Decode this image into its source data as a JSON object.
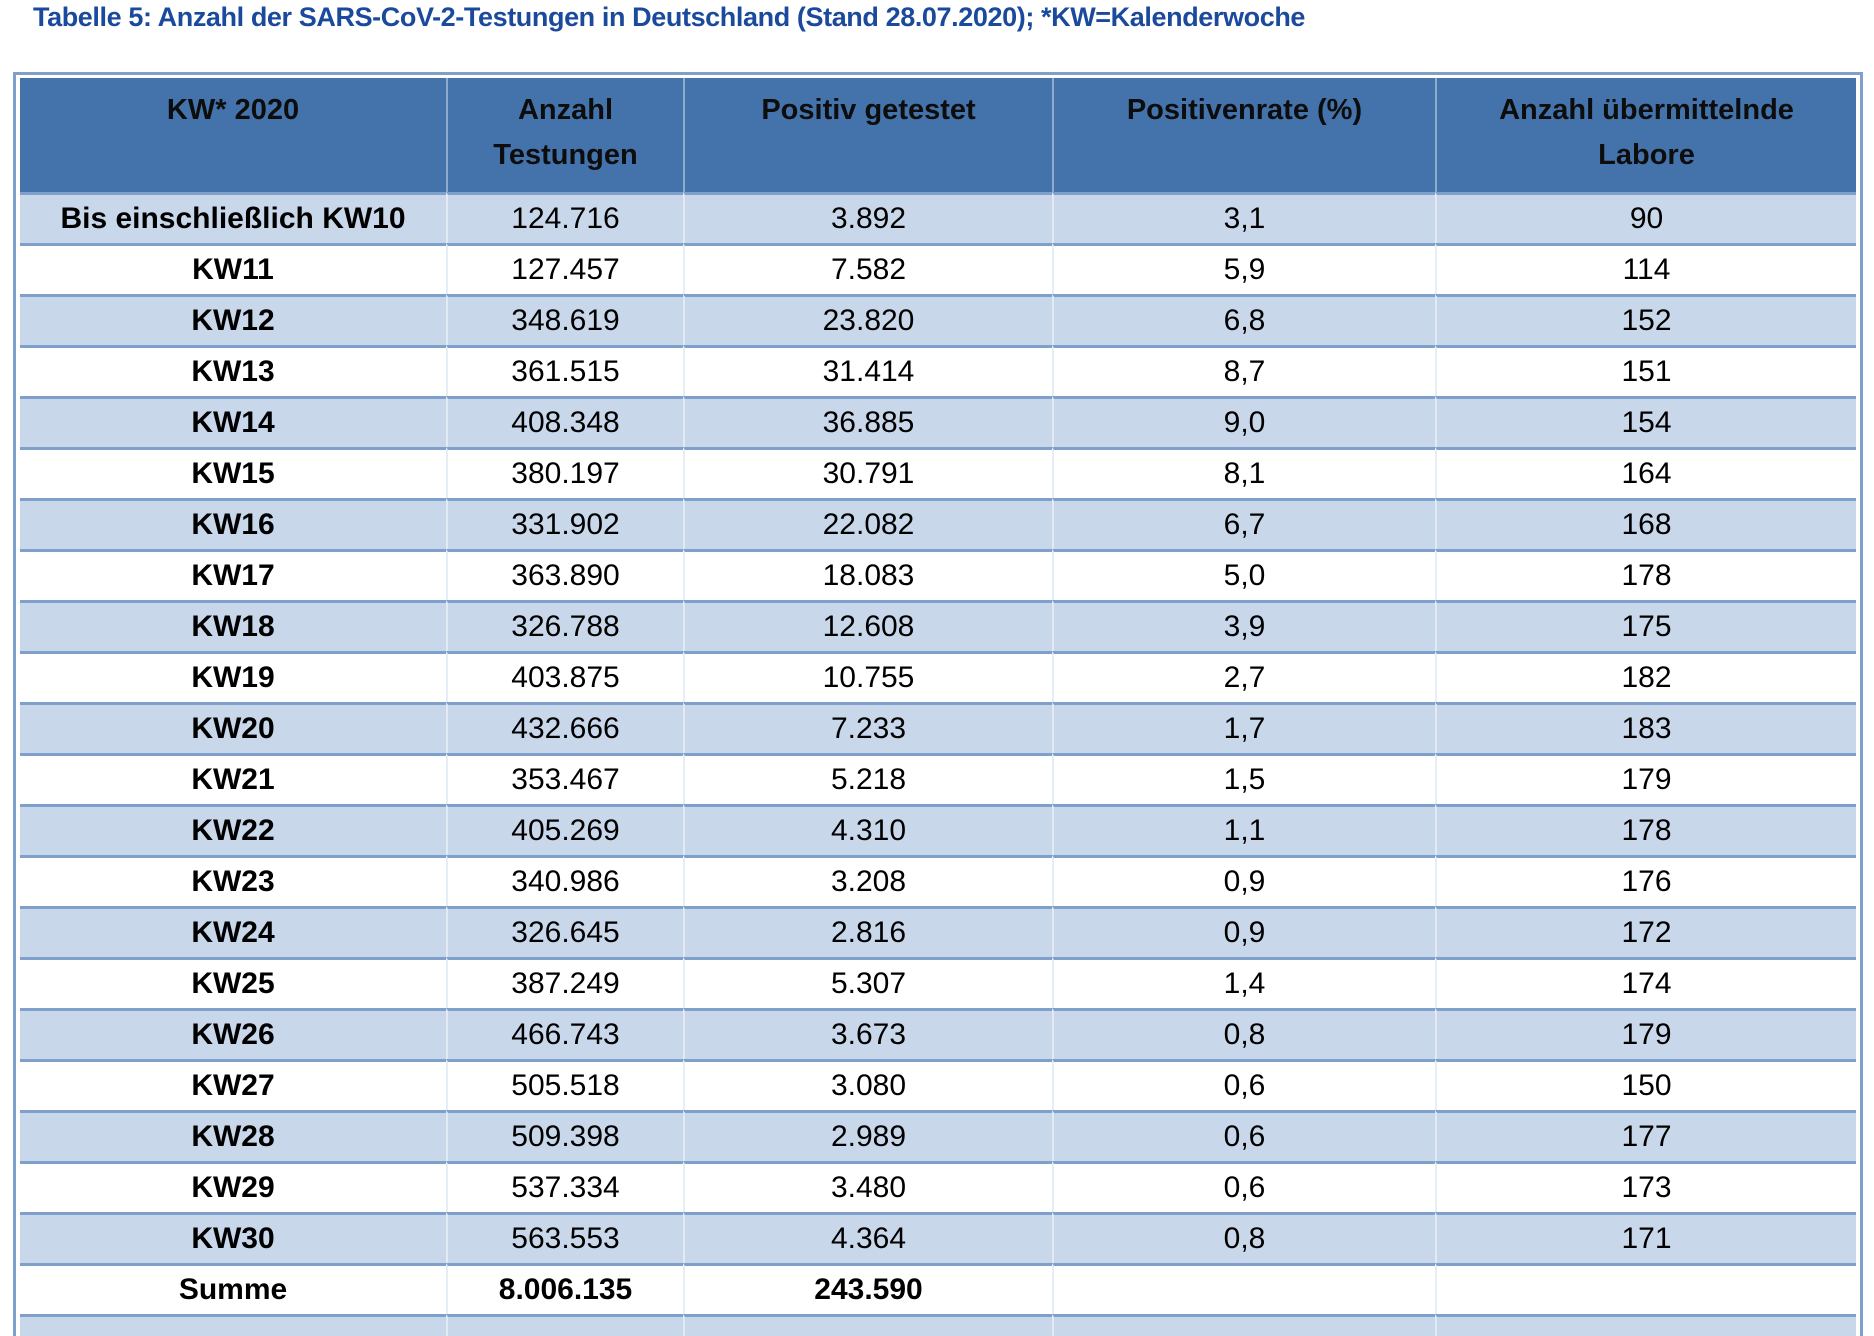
{
  "title": "Tabelle 5: Anzahl der SARS-CoV-2-Testungen in Deutschland (Stand 28.07.2020); *KW=Kalenderwoche",
  "table": {
    "columns": [
      "KW* 2020",
      "Anzahl Testungen",
      "Positiv getestet",
      "Positivenrate (%)",
      "Anzahl übermittelnde Labore"
    ],
    "rows": [
      [
        "Bis einschließlich KW10",
        "124.716",
        "3.892",
        "3,1",
        "90"
      ],
      [
        "KW11",
        "127.457",
        "7.582",
        "5,9",
        "114"
      ],
      [
        "KW12",
        "348.619",
        "23.820",
        "6,8",
        "152"
      ],
      [
        "KW13",
        "361.515",
        "31.414",
        "8,7",
        "151"
      ],
      [
        "KW14",
        "408.348",
        "36.885",
        "9,0",
        "154"
      ],
      [
        "KW15",
        "380.197",
        "30.791",
        "8,1",
        "164"
      ],
      [
        "KW16",
        "331.902",
        "22.082",
        "6,7",
        "168"
      ],
      [
        "KW17",
        "363.890",
        "18.083",
        "5,0",
        "178"
      ],
      [
        "KW18",
        "326.788",
        "12.608",
        "3,9",
        "175"
      ],
      [
        "KW19",
        "403.875",
        "10.755",
        "2,7",
        "182"
      ],
      [
        "KW20",
        "432.666",
        "7.233",
        "1,7",
        "183"
      ],
      [
        "KW21",
        "353.467",
        "5.218",
        "1,5",
        "179"
      ],
      [
        "KW22",
        "405.269",
        "4.310",
        "1,1",
        "178"
      ],
      [
        "KW23",
        "340.986",
        "3.208",
        "0,9",
        "176"
      ],
      [
        "KW24",
        "326.645",
        "2.816",
        "0,9",
        "172"
      ],
      [
        "KW25",
        "387.249",
        "5.307",
        "1,4",
        "174"
      ],
      [
        "KW26",
        "466.743",
        "3.673",
        "0,8",
        "179"
      ],
      [
        "KW27",
        "505.518",
        "3.080",
        "0,6",
        "150"
      ],
      [
        "KW28",
        "509.398",
        "2.989",
        "0,6",
        "177"
      ],
      [
        "KW29",
        "537.334",
        "3.480",
        "0,6",
        "173"
      ],
      [
        "KW30",
        "563.553",
        "4.364",
        "0,8",
        "171"
      ]
    ],
    "summary_row": [
      "Summe",
      "8.006.135",
      "243.590",
      "",
      ""
    ]
  },
  "colors": {
    "title_text": "#1B4A9C",
    "header_bg": "#4473AC",
    "stripe_row_bg": "#C9D7EB",
    "plain_row_bg": "#FFFFFF",
    "grid_border": "#7FA0CB",
    "body_text": "#000000"
  }
}
